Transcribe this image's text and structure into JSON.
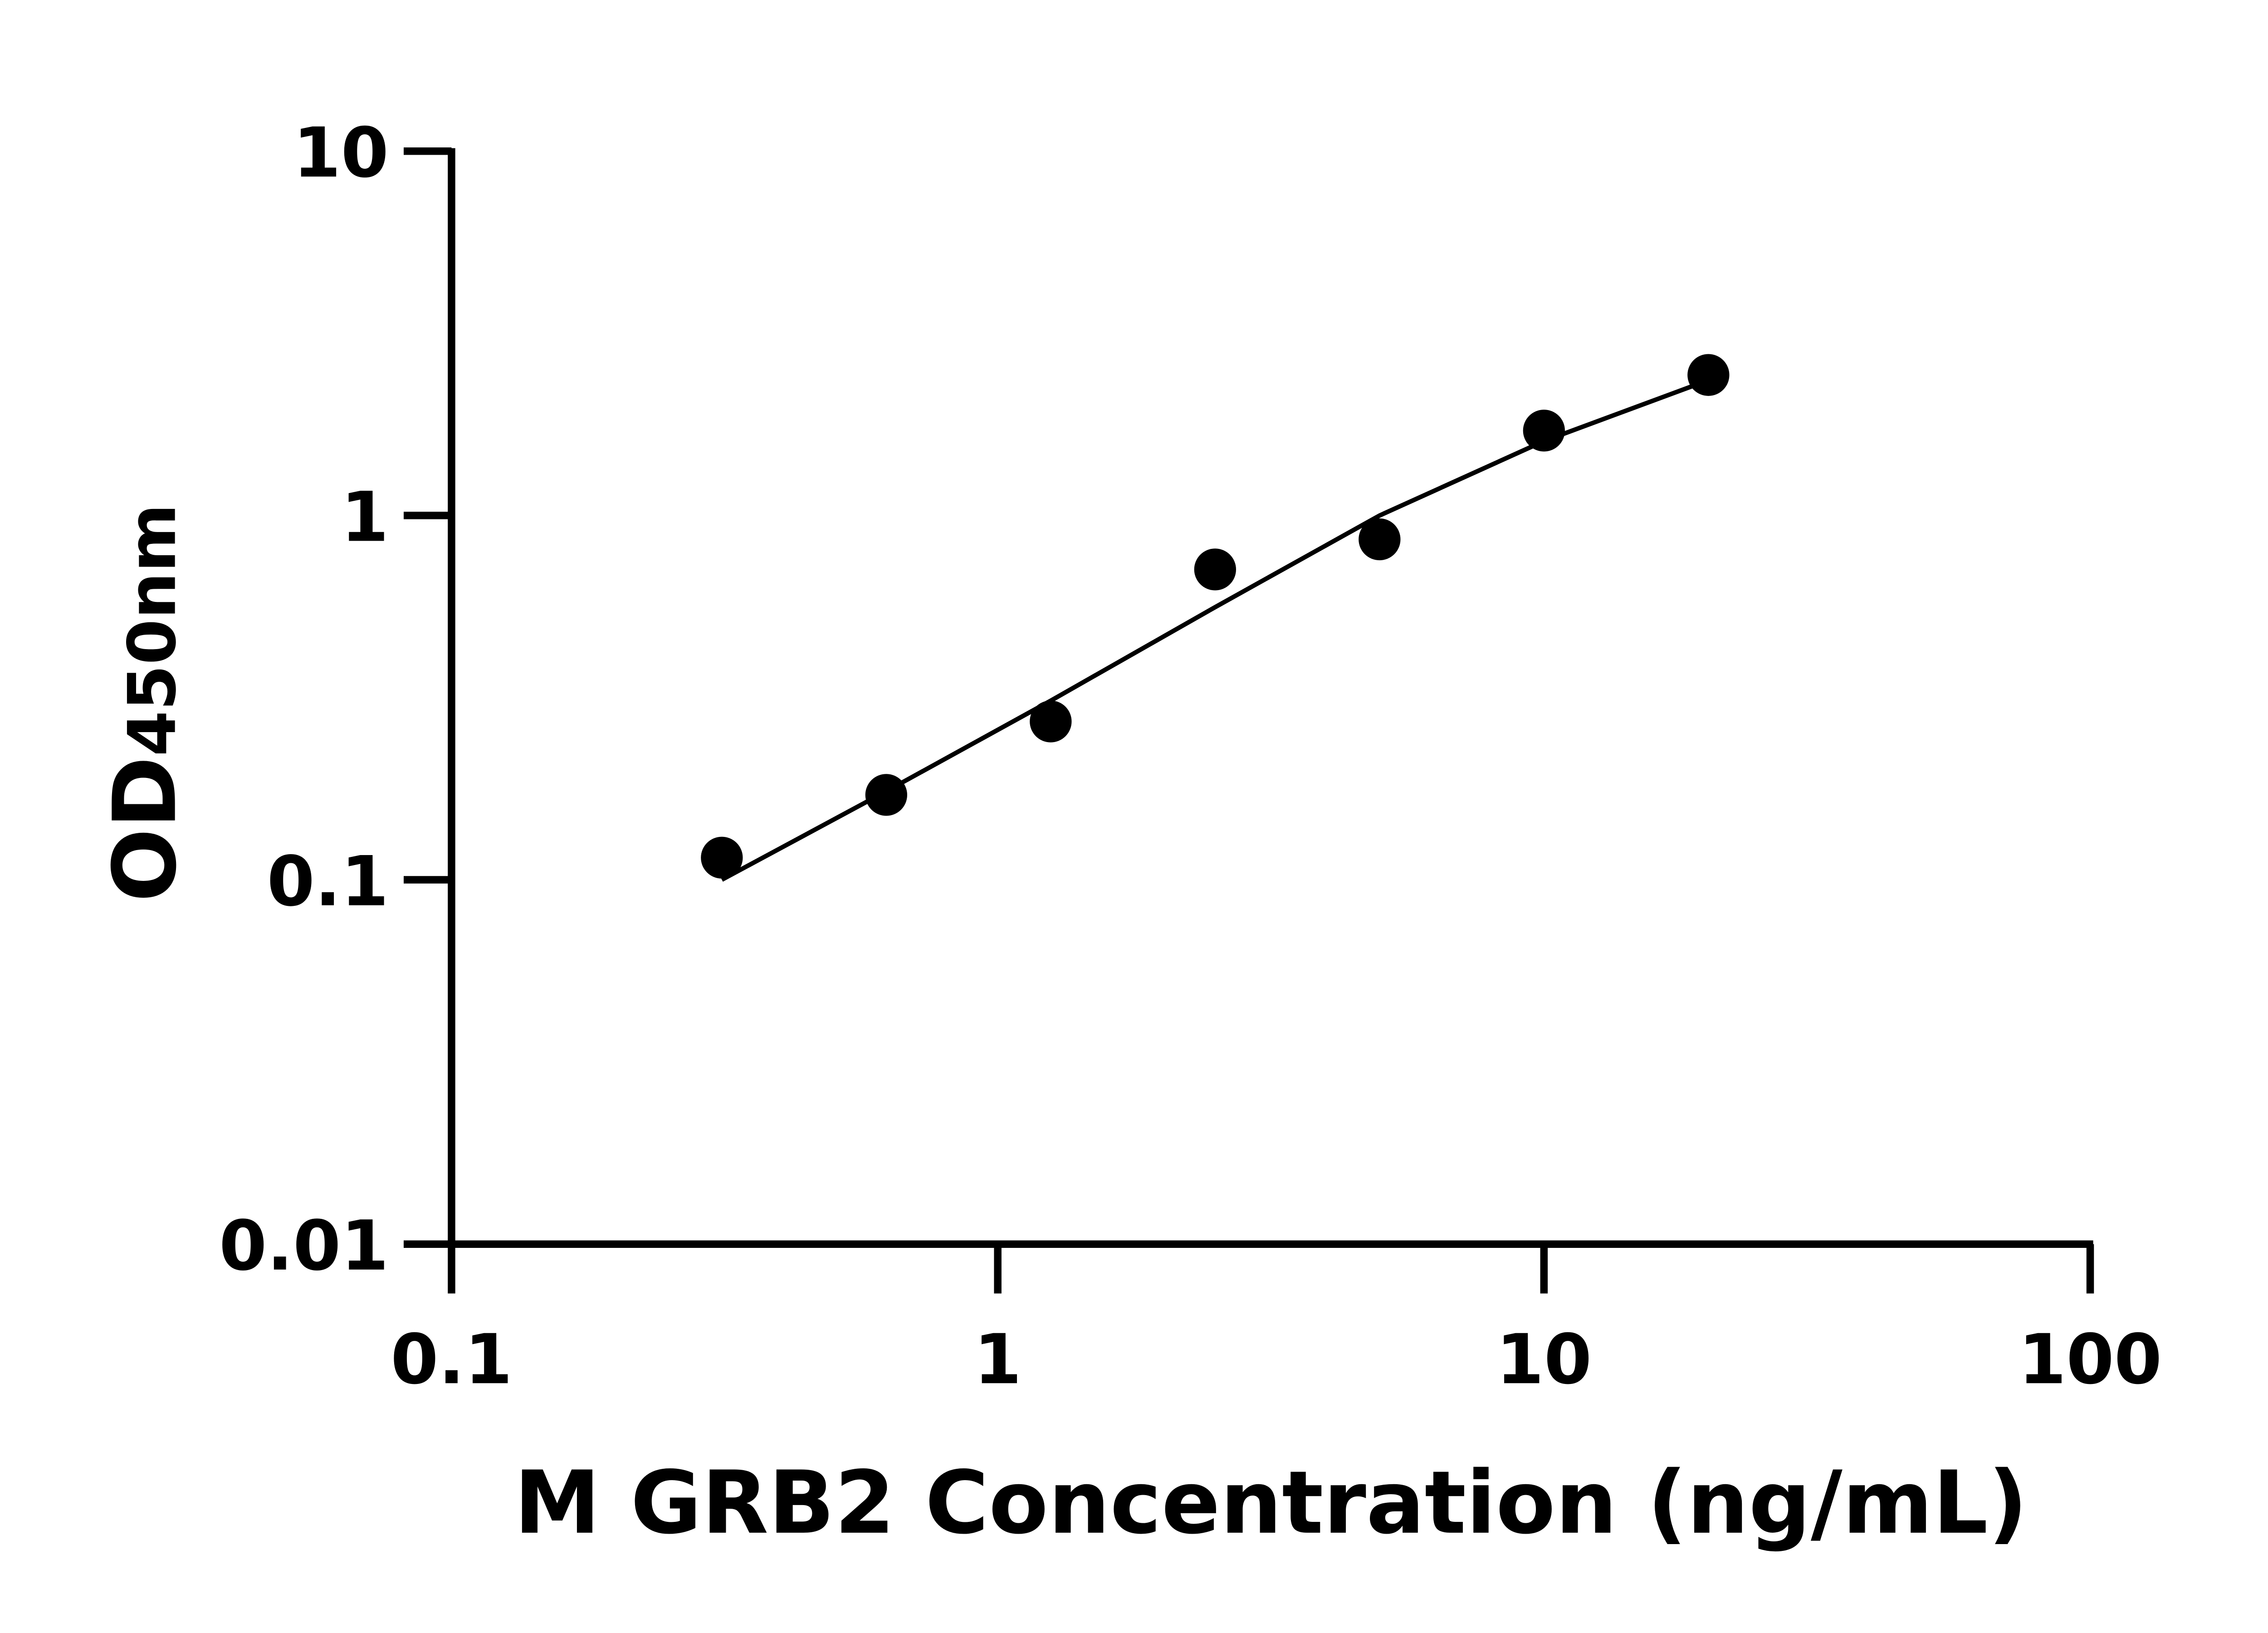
{
  "chart_data": {
    "type": "scatter",
    "title": "",
    "xlabel": "M GRB2 Concentration (ng/mL)",
    "ylabel": {
      "main": "OD",
      "sub": "450nm"
    },
    "x_scale": "log",
    "y_scale": "log",
    "xlim": [
      0.1,
      100
    ],
    "ylim": [
      0.01,
      10
    ],
    "x_ticks": [
      "0.1",
      "1",
      "10",
      "100"
    ],
    "y_ticks": [
      "10",
      "1",
      "0.1",
      "0.01"
    ],
    "grid": false,
    "legend": "none",
    "points": {
      "x": [
        0.3125,
        0.625,
        1.25,
        2.5,
        5,
        10,
        20
      ],
      "y": [
        0.115,
        0.171,
        0.272,
        0.711,
        0.86,
        1.71,
        2.43
      ]
    },
    "fit_curve": {
      "x": [
        0.3125,
        0.625,
        1.25,
        2.5,
        5,
        10,
        20
      ],
      "y": [
        0.1,
        0.175,
        0.31,
        0.56,
        1.0,
        1.6,
        2.35
      ]
    },
    "colors": {
      "marks": "#000000",
      "axes": "#000000"
    }
  }
}
